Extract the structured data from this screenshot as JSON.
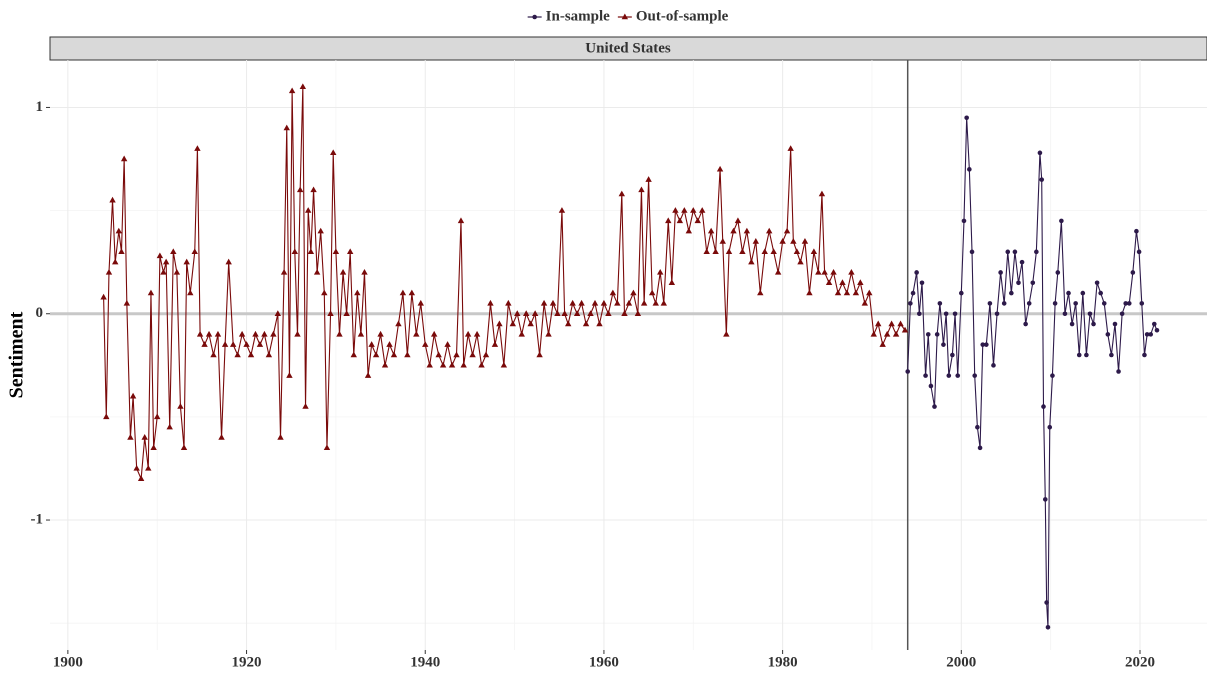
{
  "chart_data": {
    "type": "line",
    "panel_title": "United States",
    "ylabel": "Sentiment",
    "xlim": [
      1898,
      2027.5
    ],
    "ylim": [
      -1.63,
      1.23
    ],
    "xticks": [
      1900,
      1920,
      1940,
      1960,
      1980,
      2000,
      2020
    ],
    "minor_xticks": [
      1910,
      1930,
      1950,
      1970,
      1990,
      2010
    ],
    "yticks": [
      -1,
      0,
      1
    ],
    "minor_yticks": [
      -1.5,
      -0.5,
      0.5
    ],
    "grid": true,
    "hline": 0,
    "vline": 1994,
    "legend": "top",
    "series": [
      {
        "name": "In-sample",
        "color": "#2d1a4a",
        "marker": "circle",
        "x": [
          1994,
          1994.3,
          1994.6,
          1995,
          1995.3,
          1995.6,
          1996,
          1996.3,
          1996.6,
          1997,
          1997.3,
          1997.6,
          1998,
          1998.3,
          1998.6,
          1999,
          1999.3,
          1999.6,
          2000,
          2000.3,
          2000.6,
          2000.9,
          2001.2,
          2001.5,
          2001.8,
          2002.1,
          2002.4,
          2002.8,
          2003.2,
          2003.6,
          2004,
          2004.4,
          2004.8,
          2005.2,
          2005.6,
          2006,
          2006.4,
          2006.8,
          2007.2,
          2007.6,
          2008,
          2008.4,
          2008.8,
          2009,
          2009.2,
          2009.4,
          2009.55,
          2009.7,
          2009.9,
          2010.2,
          2010.5,
          2010.8,
          2011.2,
          2011.6,
          2012,
          2012.4,
          2012.8,
          2013.2,
          2013.6,
          2014,
          2014.4,
          2014.8,
          2015.2,
          2015.6,
          2016,
          2016.4,
          2016.8,
          2017.2,
          2017.6,
          2018,
          2018.4,
          2018.8,
          2019.2,
          2019.6,
          2019.9,
          2020.2,
          2020.5,
          2020.8,
          2021.2,
          2021.6,
          2021.9
        ],
        "values": [
          -0.28,
          0.05,
          0.1,
          0.2,
          0,
          0.15,
          -0.3,
          -0.1,
          -0.35,
          -0.45,
          -0.1,
          0.05,
          -0.15,
          0,
          -0.3,
          -0.2,
          0,
          -0.3,
          0.1,
          0.45,
          0.95,
          0.7,
          0.3,
          -0.3,
          -0.55,
          -0.65,
          -0.15,
          -0.15,
          0.05,
          -0.25,
          0,
          0.2,
          0.05,
          0.3,
          0.1,
          0.3,
          0.15,
          0.25,
          -0.05,
          0.05,
          0.15,
          0.3,
          0.78,
          0.65,
          -0.45,
          -0.9,
          -1.4,
          -1.52,
          -0.55,
          -0.3,
          0.05,
          0.2,
          0.45,
          0,
          0.1,
          -0.05,
          0.05,
          -0.2,
          0.1,
          -0.2,
          0,
          -0.05,
          0.15,
          0.1,
          0.05,
          -0.1,
          -0.2,
          -0.05,
          -0.28,
          0,
          0.05,
          0.05,
          0.2,
          0.4,
          0.3,
          0.05,
          -0.2,
          -0.1,
          -0.1,
          -0.05,
          -0.08
        ]
      },
      {
        "name": "Out-of-sample",
        "color": "#7a0a0a",
        "marker": "triangle",
        "x": [
          1904,
          1904.3,
          1904.6,
          1905,
          1905.3,
          1905.7,
          1906,
          1906.3,
          1906.6,
          1907,
          1907.3,
          1907.7,
          1908.2,
          1908.6,
          1909,
          1909.3,
          1909.6,
          1910,
          1910.3,
          1910.7,
          1911,
          1911.4,
          1911.8,
          1912.2,
          1912.6,
          1913,
          1913.3,
          1913.7,
          1914.2,
          1914.5,
          1914.8,
          1915.3,
          1915.8,
          1916.3,
          1916.8,
          1917.2,
          1917.6,
          1918,
          1918.5,
          1919,
          1919.5,
          1920,
          1920.5,
          1921,
          1921.5,
          1922,
          1922.5,
          1923,
          1923.5,
          1923.8,
          1924.2,
          1924.5,
          1924.8,
          1925.1,
          1925.4,
          1925.7,
          1926,
          1926.3,
          1926.6,
          1926.9,
          1927.2,
          1927.5,
          1927.9,
          1928.3,
          1928.7,
          1929,
          1929.4,
          1929.7,
          1930,
          1930.4,
          1930.8,
          1931.2,
          1931.6,
          1932,
          1932.4,
          1932.8,
          1933.2,
          1933.6,
          1934,
          1934.5,
          1935,
          1935.5,
          1936,
          1936.5,
          1937,
          1937.5,
          1938,
          1938.5,
          1939,
          1939.5,
          1940,
          1940.5,
          1941,
          1941.5,
          1942,
          1942.5,
          1943,
          1943.5,
          1944,
          1944.3,
          1944.8,
          1945.3,
          1945.8,
          1946.3,
          1946.8,
          1947.3,
          1947.8,
          1948.3,
          1948.8,
          1949.3,
          1949.8,
          1950.3,
          1950.8,
          1951.3,
          1951.8,
          1952.3,
          1952.8,
          1953.3,
          1953.8,
          1954.3,
          1954.8,
          1955.3,
          1955.6,
          1956,
          1956.5,
          1957,
          1957.5,
          1958,
          1958.5,
          1959,
          1959.5,
          1960,
          1960.5,
          1961,
          1961.5,
          1962,
          1962.3,
          1962.8,
          1963.3,
          1963.8,
          1964.2,
          1964.5,
          1965,
          1965.4,
          1965.8,
          1966.3,
          1966.7,
          1967.2,
          1967.6,
          1968,
          1968.5,
          1969,
          1969.5,
          1970,
          1970.5,
          1971,
          1971.5,
          1972,
          1972.5,
          1973,
          1973.3,
          1973.7,
          1974,
          1974.5,
          1975,
          1975.5,
          1976,
          1976.5,
          1977,
          1977.5,
          1978,
          1978.5,
          1979,
          1979.5,
          1980,
          1980.5,
          1980.9,
          1981.2,
          1981.6,
          1982,
          1982.5,
          1983,
          1983.5,
          1984,
          1984.4,
          1984.7,
          1985.2,
          1985.7,
          1986.2,
          1986.7,
          1987.2,
          1987.7,
          1988.2,
          1988.7,
          1989.2,
          1989.7,
          1990.2,
          1990.7,
          1991.2,
          1991.7,
          1992.2,
          1992.7,
          1993.2,
          1993.7
        ],
        "values": [
          0.08,
          -0.5,
          0.2,
          0.55,
          0.25,
          0.4,
          0.3,
          0.75,
          0.05,
          -0.6,
          -0.4,
          -0.75,
          -0.8,
          -0.6,
          -0.75,
          0.1,
          -0.65,
          -0.5,
          0.28,
          0.2,
          0.25,
          -0.55,
          0.3,
          0.2,
          -0.45,
          -0.65,
          0.25,
          0.1,
          0.3,
          0.8,
          -0.1,
          -0.15,
          -0.1,
          -0.2,
          -0.1,
          -0.6,
          -0.15,
          0.25,
          -0.15,
          -0.2,
          -0.1,
          -0.15,
          -0.2,
          -0.1,
          -0.15,
          -0.1,
          -0.2,
          -0.1,
          0,
          -0.6,
          0.2,
          0.9,
          -0.3,
          1.08,
          0.3,
          -0.1,
          0.6,
          1.1,
          -0.45,
          0.5,
          0.3,
          0.6,
          0.2,
          0.4,
          0.1,
          -0.65,
          0,
          0.78,
          0.3,
          -0.1,
          0.2,
          0,
          0.3,
          -0.2,
          0.1,
          -0.1,
          0.2,
          -0.3,
          -0.15,
          -0.2,
          -0.1,
          -0.25,
          -0.15,
          -0.2,
          -0.05,
          0.1,
          -0.2,
          0.1,
          -0.1,
          0.05,
          -0.15,
          -0.25,
          -0.1,
          -0.2,
          -0.25,
          -0.15,
          -0.25,
          -0.2,
          0.45,
          -0.25,
          -0.1,
          -0.2,
          -0.1,
          -0.25,
          -0.2,
          0.05,
          -0.15,
          -0.05,
          -0.25,
          0.05,
          -0.05,
          0,
          -0.1,
          0,
          -0.05,
          0,
          -0.2,
          0.05,
          -0.1,
          0.05,
          0,
          0.5,
          0,
          -0.05,
          0.05,
          0,
          0.05,
          -0.05,
          0,
          0.05,
          -0.05,
          0.05,
          0,
          0.1,
          0.05,
          0.58,
          0,
          0.05,
          0.1,
          0,
          0.6,
          0.05,
          0.65,
          0.1,
          0.05,
          0.2,
          0.05,
          0.45,
          0.15,
          0.5,
          0.45,
          0.5,
          0.4,
          0.5,
          0.45,
          0.5,
          0.3,
          0.4,
          0.3,
          0.7,
          0.35,
          -0.1,
          0.3,
          0.4,
          0.45,
          0.3,
          0.4,
          0.25,
          0.35,
          0.1,
          0.3,
          0.4,
          0.3,
          0.2,
          0.35,
          0.4,
          0.8,
          0.35,
          0.3,
          0.25,
          0.35,
          0.1,
          0.3,
          0.2,
          0.58,
          0.2,
          0.15,
          0.2,
          0.1,
          0.15,
          0.1,
          0.2,
          0.1,
          0.15,
          0.05,
          0.1,
          -0.1,
          -0.05,
          -0.15,
          -0.1,
          -0.05,
          -0.1,
          -0.05,
          -0.08
        ]
      }
    ]
  }
}
